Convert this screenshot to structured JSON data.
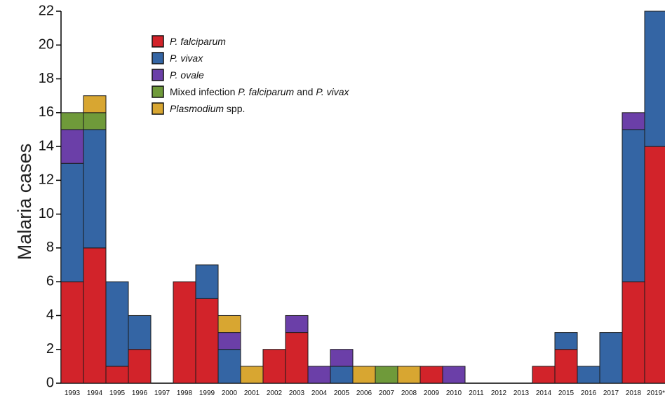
{
  "chart_data": {
    "type": "bar",
    "stacked": true,
    "ylabel": "Malaria cases",
    "xlabel": "",
    "ylim": [
      0,
      22
    ],
    "yticks": [
      "0",
      "2",
      "4",
      "6",
      "8",
      "10",
      "12",
      "14",
      "16",
      "18",
      "20",
      "22"
    ],
    "categories": [
      "1993",
      "1994",
      "1995",
      "1996",
      "1997",
      "1998",
      "1999",
      "2000",
      "2001",
      "2002",
      "2003",
      "2004",
      "2005",
      "2006",
      "2007",
      "2008",
      "2009",
      "2010",
      "2011",
      "2012",
      "2013",
      "2014",
      "2015",
      "2016",
      "2017",
      "2018",
      "2019*"
    ],
    "series": [
      {
        "name": "P. falciparum",
        "legend_parts": [
          {
            "text": "P. falciparum",
            "italic": true
          }
        ],
        "color": "#d2232a",
        "values": [
          6,
          8,
          1,
          2,
          0,
          6,
          5,
          0,
          0,
          2,
          3,
          0,
          0,
          0,
          0,
          0,
          1,
          0,
          0,
          0,
          0,
          1,
          2,
          0,
          0,
          6,
          14
        ]
      },
      {
        "name": "P. vivax",
        "legend_parts": [
          {
            "text": "P. vivax",
            "italic": true
          }
        ],
        "color": "#3465a4",
        "values": [
          7,
          7,
          5,
          2,
          0,
          0,
          2,
          2,
          0,
          0,
          0,
          0,
          1,
          0,
          0,
          0,
          0,
          0,
          0,
          0,
          0,
          0,
          1,
          1,
          3,
          9,
          8
        ]
      },
      {
        "name": "P. ovale",
        "legend_parts": [
          {
            "text": "P. ovale",
            "italic": true
          }
        ],
        "color": "#6b3fa8",
        "values": [
          2,
          0,
          0,
          0,
          0,
          0,
          0,
          1,
          0,
          0,
          1,
          1,
          1,
          0,
          0,
          0,
          0,
          1,
          0,
          0,
          0,
          0,
          0,
          0,
          0,
          1,
          0
        ]
      },
      {
        "name": "Mixed infection P. falciparum and P. vivax",
        "legend_parts": [
          {
            "text": "Mixed infection ",
            "italic": false
          },
          {
            "text": "P. falciparum",
            "italic": true
          },
          {
            "text": " and ",
            "italic": false
          },
          {
            "text": "P. vivax",
            "italic": true
          }
        ],
        "color": "#6f9a3a",
        "values": [
          1,
          1,
          0,
          0,
          0,
          0,
          0,
          0,
          0,
          0,
          0,
          0,
          0,
          0,
          1,
          0,
          0,
          0,
          0,
          0,
          0,
          0,
          0,
          0,
          0,
          0,
          0
        ]
      },
      {
        "name": "Plasmodium spp.",
        "legend_parts": [
          {
            "text": "Plasmodium",
            "italic": true
          },
          {
            "text": " spp.",
            "italic": false
          }
        ],
        "color": "#d8a631",
        "values": [
          0,
          1,
          0,
          0,
          0,
          0,
          0,
          1,
          1,
          0,
          0,
          0,
          0,
          1,
          0,
          1,
          0,
          0,
          0,
          0,
          0,
          0,
          0,
          0,
          0,
          0,
          0
        ]
      }
    ],
    "grid": false,
    "legend": "top-left"
  }
}
